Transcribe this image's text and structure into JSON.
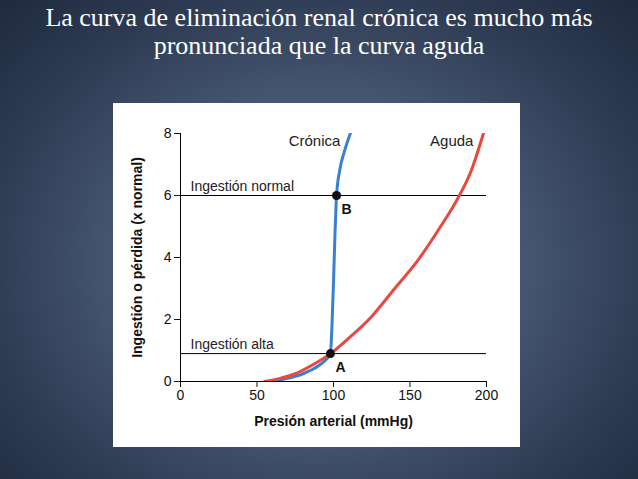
{
  "chart_data": {
    "type": "line",
    "title": "La curva de eliminación renal crónica es mucho más pronunciada que la curva aguda",
    "x_label": "Presión arterial (mmHg)",
    "y_label": "Ingestión o pérdida (x normal)",
    "xlim": [
      0,
      200
    ],
    "ylim": [
      0,
      8
    ],
    "xticks": [
      0,
      50,
      100,
      150,
      200
    ],
    "yticks": [
      0,
      2,
      4,
      6,
      8
    ],
    "grid": false,
    "series": [
      {
        "name": "Crónica",
        "color": "#3b7fd1",
        "x": [
          58,
          70,
          80,
          90,
          95,
          98,
          99,
          100,
          101,
          102,
          104,
          107,
          111
        ],
        "values": [
          0,
          0.1,
          0.25,
          0.5,
          0.7,
          0.9,
          1.8,
          3.2,
          4.8,
          6,
          6.8,
          7.4,
          8
        ]
      },
      {
        "name": "Aguda",
        "color": "#e8483f",
        "x": [
          55,
          65,
          75,
          85,
          98,
          110,
          125,
          140,
          155,
          170,
          180,
          190,
          198
        ],
        "values": [
          0,
          0.1,
          0.25,
          0.5,
          0.9,
          1.4,
          2.1,
          3,
          3.9,
          5,
          5.8,
          6.8,
          8
        ]
      }
    ],
    "reference_lines": [
      {
        "label": "Ingestión normal",
        "y": 6
      },
      {
        "label": "Ingestión alta",
        "y": 0.9
      }
    ],
    "points": [
      {
        "label": "A",
        "x": 98,
        "y": 0.9
      },
      {
        "label": "B",
        "x": 102,
        "y": 6
      }
    ]
  }
}
